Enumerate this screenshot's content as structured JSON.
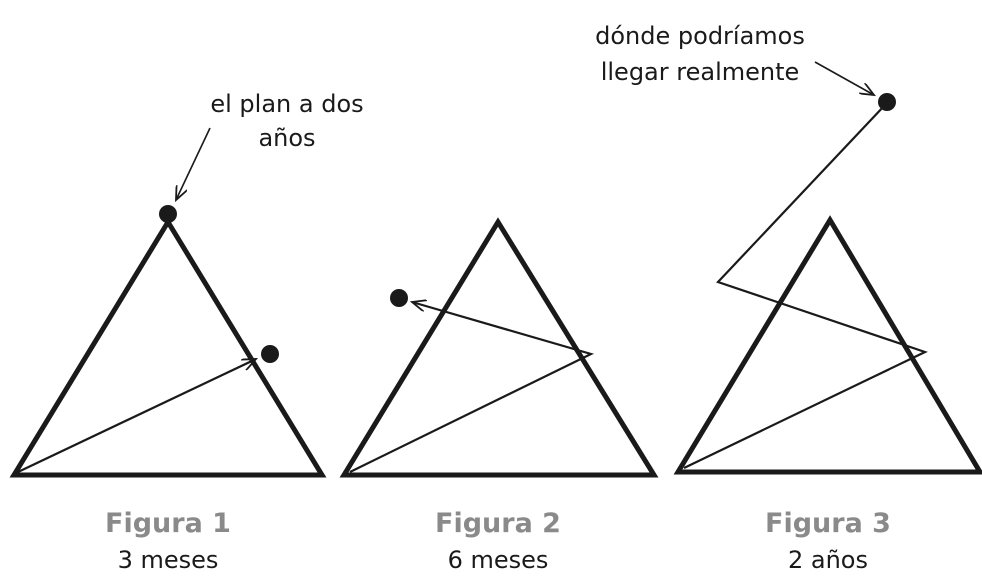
{
  "figures": [
    {
      "title": "Figura 1",
      "subtitle": "3 meses"
    },
    {
      "title": "Figura 2",
      "subtitle": "6 meses"
    },
    {
      "title": "Figura 3",
      "subtitle": "2 años"
    }
  ],
  "annotations": [
    {
      "lines": [
        "el plan a dos",
        "años"
      ]
    },
    {
      "lines": [
        "dónde podríamos",
        "llegar realmente"
      ]
    }
  ]
}
